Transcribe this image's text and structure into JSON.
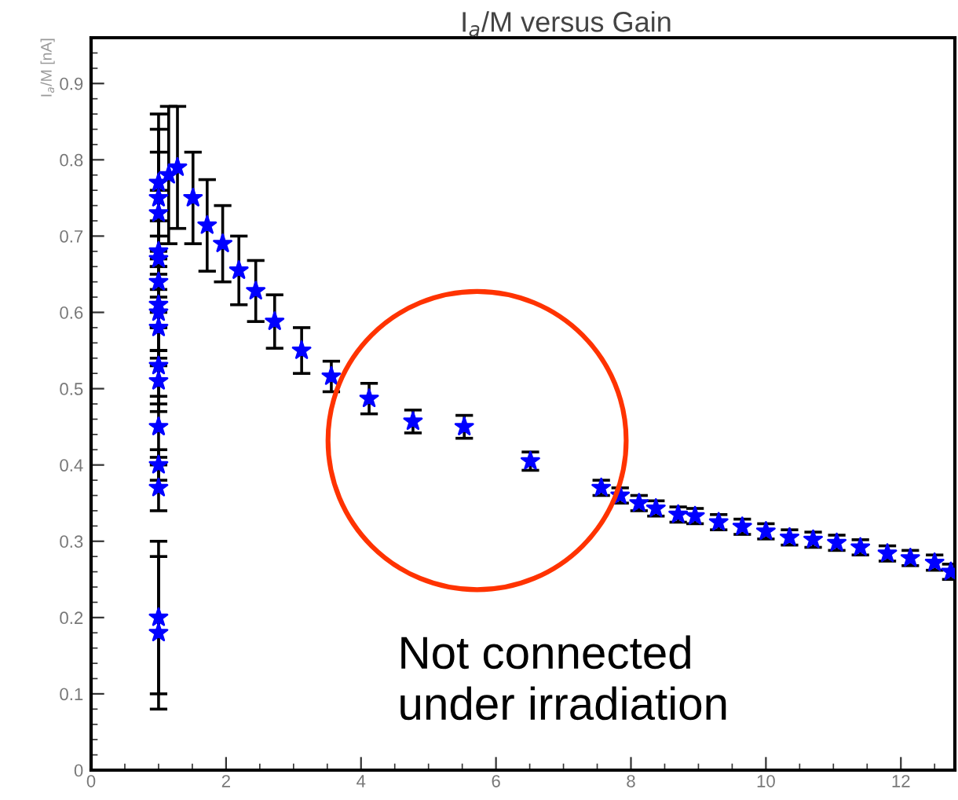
{
  "chart_data": {
    "type": "scatter",
    "title": "I$_{a}$/M versus Gain",
    "ylabel": "I$_{a}$/M [nA]",
    "annotations": [
      "Not connected\nunder irradiation"
    ],
    "x": [
      1.0,
      1.0,
      1.0,
      1.0,
      1.0,
      1.0,
      1.0,
      1.0,
      1.0,
      1.0,
      1.0,
      1.0,
      1.0,
      1.0,
      1.0,
      1.0,
      1.15,
      1.28,
      1.51,
      1.72,
      1.95,
      2.19,
      2.44,
      2.72,
      3.12,
      3.56,
      4.12,
      4.77,
      5.53,
      6.51,
      7.56,
      7.84,
      8.12,
      8.37,
      8.7,
      8.95,
      9.3,
      9.65,
      10.0,
      10.35,
      10.7,
      11.05,
      11.4,
      11.8,
      12.14,
      12.5,
      12.74
    ],
    "series": [
      {
        "color": "#0000ff",
        "values": [
          0.18,
          0.2,
          0.37,
          0.4,
          0.45,
          0.51,
          0.53,
          0.58,
          0.6,
          0.61,
          0.64,
          0.67,
          0.68,
          0.73,
          0.75,
          0.77,
          0.78,
          0.79,
          0.75,
          0.714,
          0.69,
          0.655,
          0.628,
          0.588,
          0.55,
          0.516,
          0.487,
          0.457,
          0.45,
          0.405,
          0.37,
          0.36,
          0.35,
          0.343,
          0.335,
          0.333,
          0.325,
          0.319,
          0.313,
          0.305,
          0.302,
          0.298,
          0.292,
          0.284,
          0.278,
          0.272,
          0.26
        ],
        "errors": [
          0.1,
          0.1,
          0.03,
          0.02,
          0.04,
          0.04,
          0.05,
          0.05,
          0.06,
          0.06,
          0.06,
          0.05,
          0.08,
          0.08,
          0.09,
          0.09,
          0.09,
          0.08,
          0.06,
          0.06,
          0.05,
          0.045,
          0.04,
          0.035,
          0.03,
          0.02,
          0.02,
          0.015,
          0.015,
          0.012,
          0.01,
          0.01,
          0.01,
          0.01,
          0.01,
          0.01,
          0.01,
          0.01,
          0.01,
          0.01,
          0.01,
          0.01,
          0.01,
          0.01,
          0.01,
          0.01,
          0.01
        ]
      }
    ],
    "xlim": [
      0,
      12.8
    ],
    "xticks": [
      0,
      2,
      4,
      6,
      8,
      10,
      12
    ],
    "ylim": [
      0,
      0.96
    ],
    "yticks": [
      {
        "value": 0,
        "label": "0"
      },
      0.1,
      0.2,
      0.3,
      0.4,
      0.5,
      0.6,
      0.7,
      0.8,
      0.9
    ],
    "marker": "star",
    "grid": false,
    "legend": false
  }
}
